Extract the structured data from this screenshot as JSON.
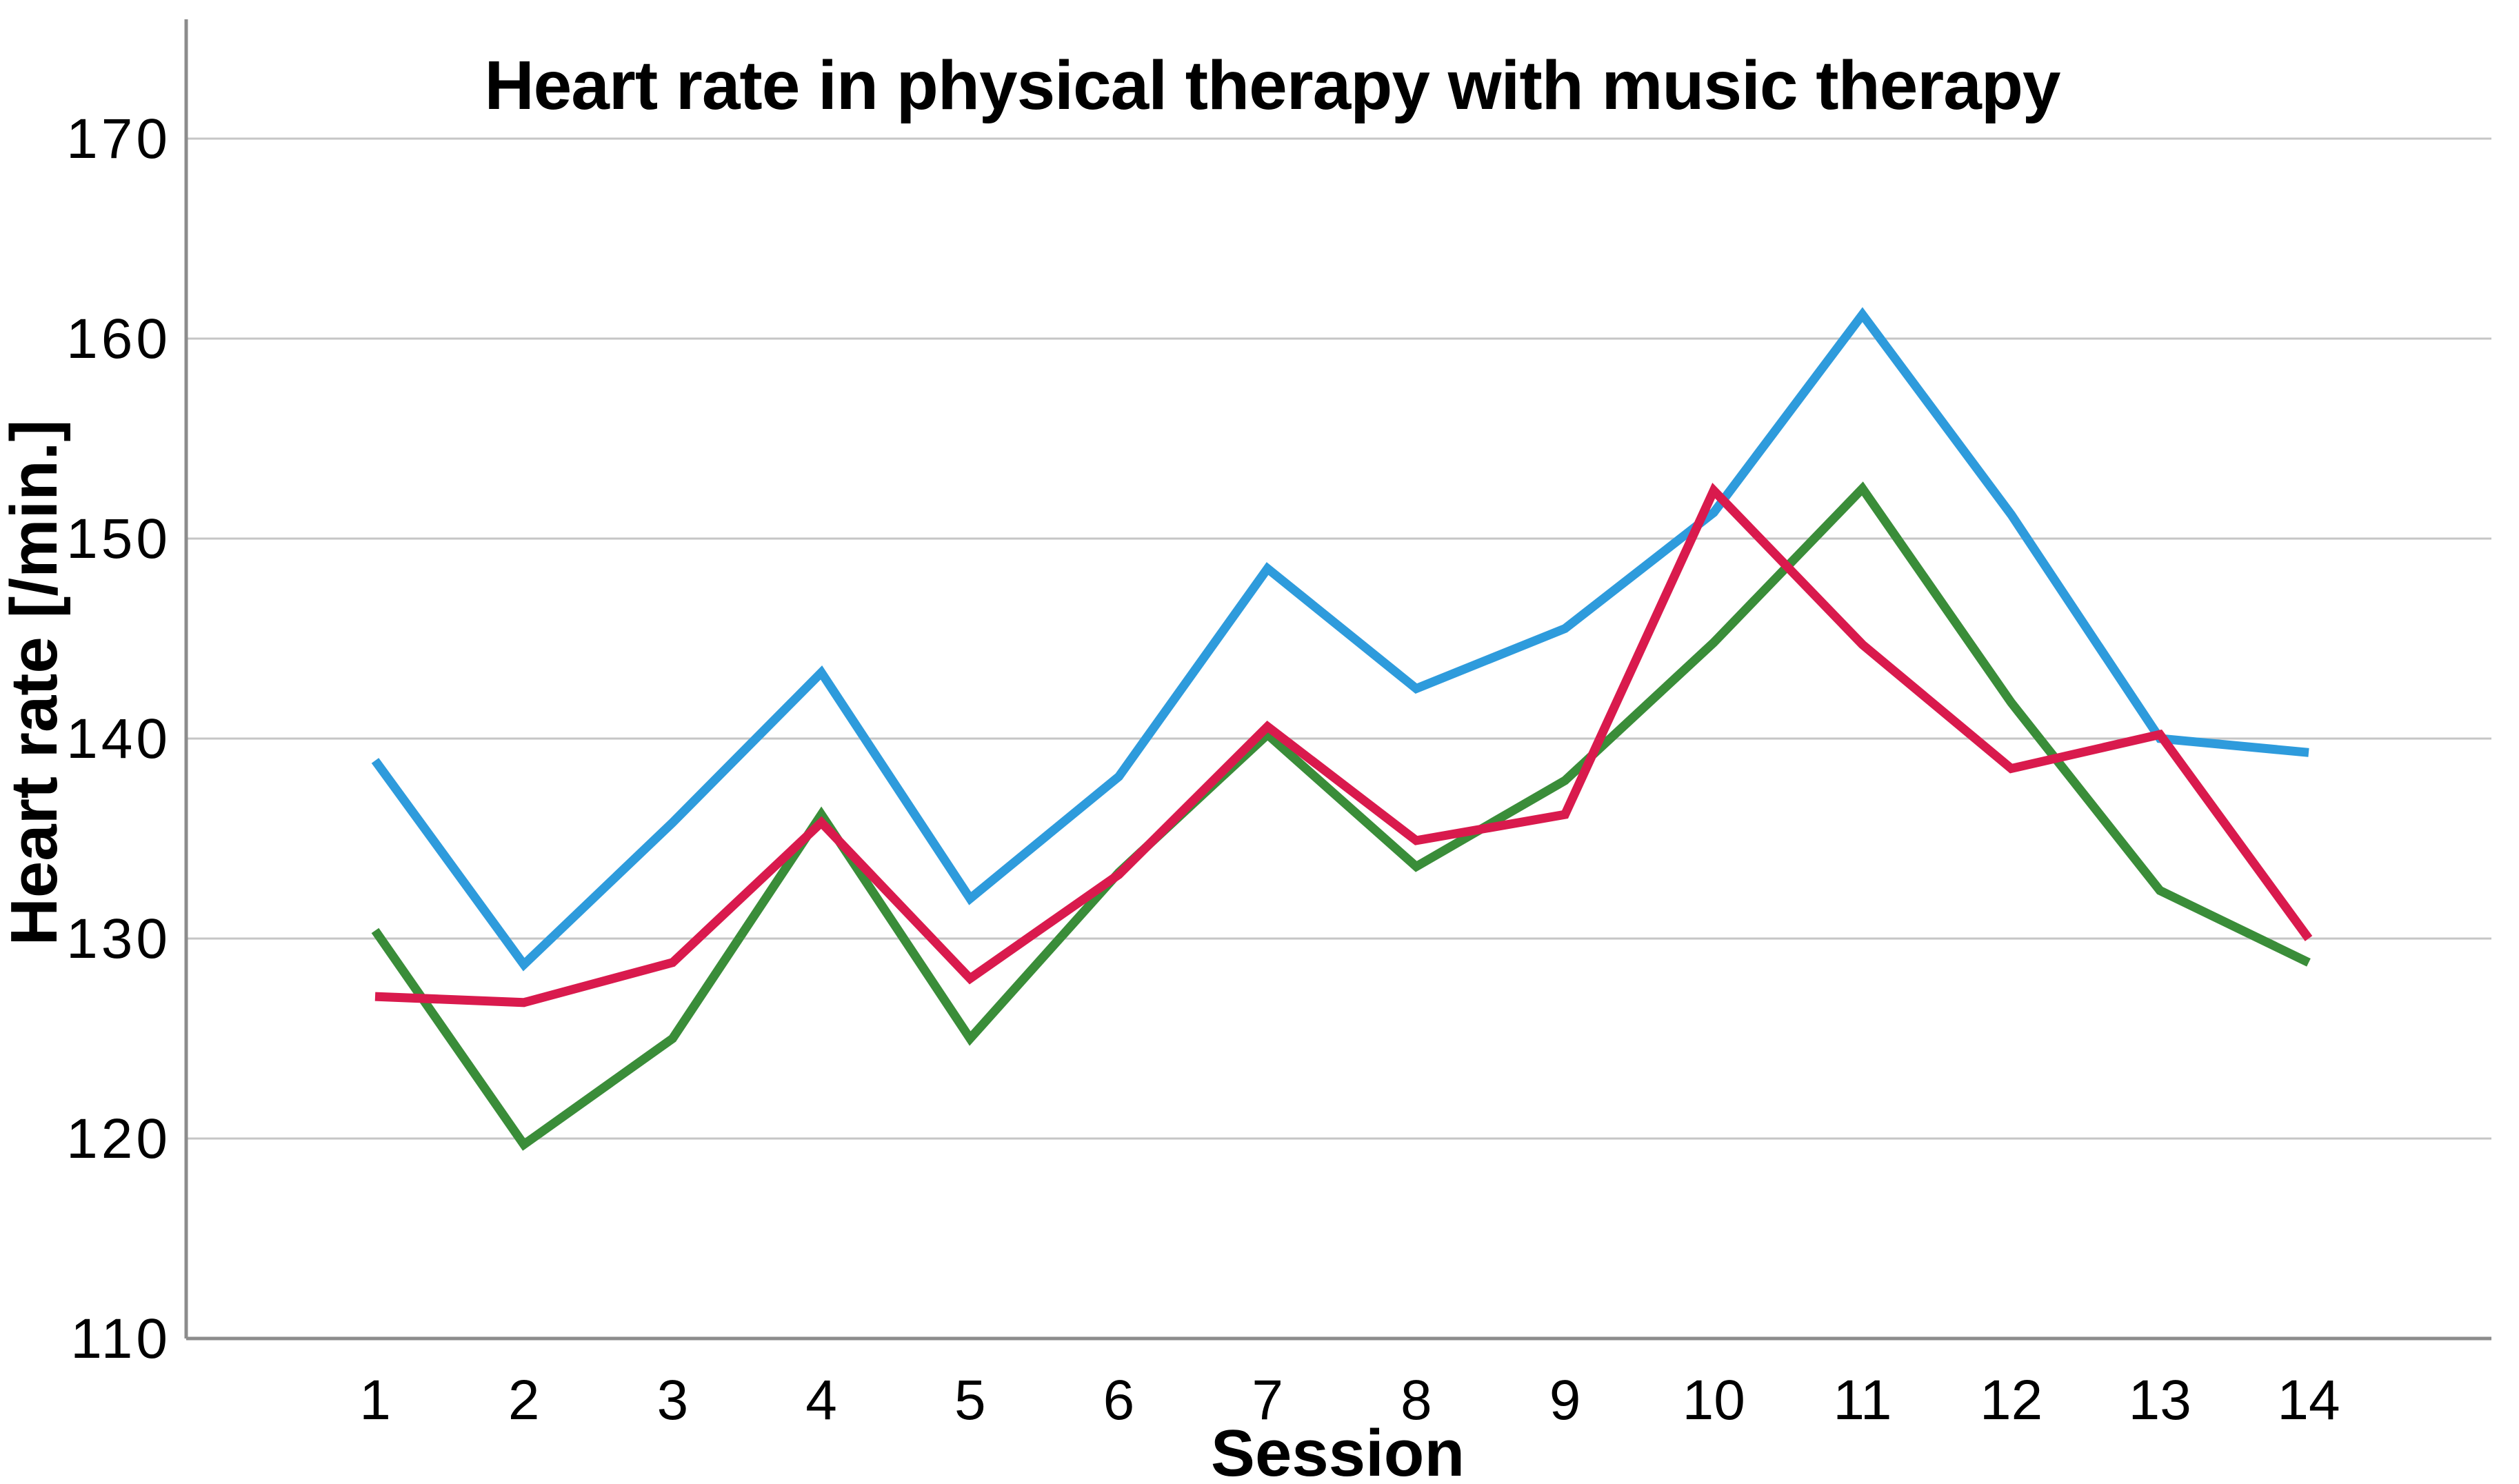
{
  "title": "Heart rate in physical therapy with music therapy",
  "x_axis": {
    "label": "Session",
    "ticks": [
      "1",
      "2",
      "3",
      "4",
      "5",
      "6",
      "7",
      "8",
      "9",
      "10",
      "11",
      "12",
      "13",
      "14"
    ]
  },
  "y_axis": {
    "label": "Heart rate [/min.]",
    "ticks": [
      "170",
      "160",
      "150",
      "140",
      "130",
      "120",
      "110"
    ],
    "min": 110,
    "max": 170
  },
  "chart_data": {
    "type": "line",
    "title": "Heart rate in physical therapy with music therapy",
    "xlabel": "Session",
    "ylabel": "Heart rate [/min.]",
    "x": [
      1,
      2,
      3,
      4,
      5,
      6,
      7,
      8,
      9,
      10,
      11,
      12,
      13,
      14
    ],
    "ylim": [
      110,
      176
    ],
    "grid": "horizontal-only",
    "legend_position": "none",
    "series": [
      {
        "name": "series-blue",
        "color": "#2E9BDC",
        "values": [
          138.9,
          128.7,
          135.8,
          143.3,
          132.0,
          138.1,
          148.5,
          142.5,
          145.5,
          151.3,
          161.2,
          151.2,
          140.0,
          139.3
        ]
      },
      {
        "name": "series-green",
        "color": "#3A8D39",
        "values": [
          130.4,
          119.7,
          125.0,
          136.2,
          125.0,
          133.3,
          140.2,
          133.6,
          137.9,
          144.8,
          152.5,
          141.8,
          132.4,
          128.8
        ]
      },
      {
        "name": "series-red",
        "color": "#D91A4D",
        "values": [
          127.1,
          126.8,
          128.8,
          135.8,
          128.0,
          133.2,
          140.6,
          134.9,
          136.2,
          152.4,
          144.7,
          138.5,
          140.2,
          130.0
        ]
      }
    ]
  }
}
